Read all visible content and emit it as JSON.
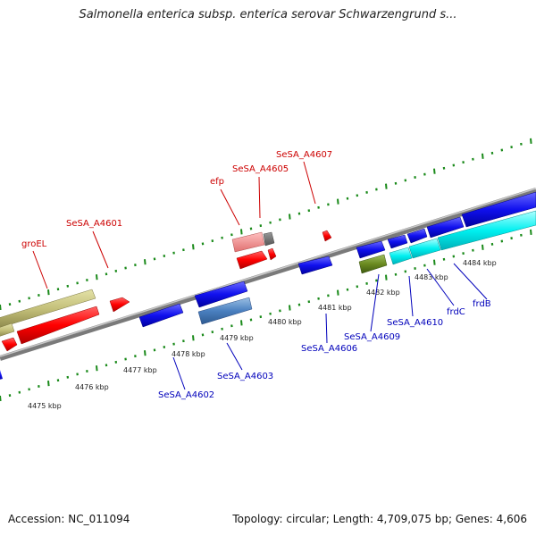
{
  "title": "Salmonella enterica subsp. enterica serovar Schwarzengrund s...",
  "footer": {
    "accession": "Accession: NC_011094",
    "summary": "Topology: circular; Length: 4,709,075 bp; Genes: 4,606"
  },
  "colors": {
    "backbone": "#8a8a8a",
    "tick": "#1a8a1a",
    "forward_label": "#cc0000",
    "reverse_label": "#0000bb"
  },
  "kbp_ticks": [
    "4475 kbp",
    "4476 kbp",
    "4477 kbp",
    "4478 kbp",
    "4479 kbp",
    "4480 kbp",
    "4481 kbp",
    "4482 kbp",
    "4483 kbp",
    "4484 kbp"
  ],
  "forward_labels": [
    "groEL",
    "SeSA_A4601",
    "efp",
    "SeSA_A4605",
    "SeSA_A4607"
  ],
  "reverse_labels": [
    "SeSA_A4602",
    "SeSA_A4603",
    "SeSA_A4606",
    "SeSA_A4609",
    "SeSA_A4610",
    "frdC",
    "frdB"
  ]
}
